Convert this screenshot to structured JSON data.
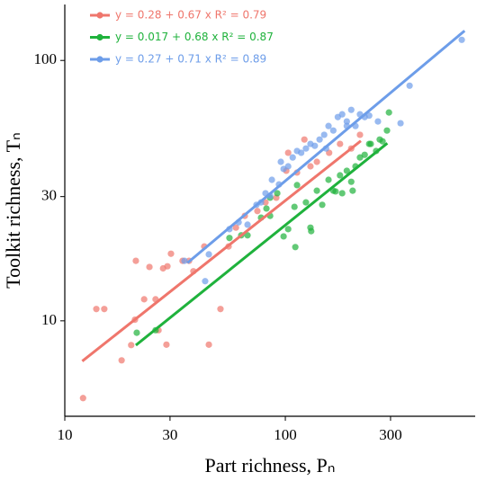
{
  "chart_data": {
    "type": "scatter",
    "x_label": "Part richness, Pₙ",
    "y_label": "Toolkit richness, Tₙ",
    "log_x": true,
    "log_y": true,
    "xlim": [
      10,
      726
    ],
    "ylim": [
      4.3,
      164
    ],
    "xticks": [
      10,
      30,
      100,
      300
    ],
    "yticks": [
      10,
      30,
      100
    ],
    "legend": "top-left",
    "series": [
      {
        "name": "y = 0.28 + 0.67 x  R² = 0.79",
        "color": "#ef766c",
        "x": [
          12.1,
          13.9,
          15.1,
          18.1,
          20,
          21,
          20.8,
          22.9,
          24.2,
          26.6,
          25.8,
          27.9,
          29.2,
          30.3,
          28.9,
          34.2,
          36.6,
          38.3,
          45,
          50.8,
          42.9,
          55.3,
          59.7,
          65.5,
          74.7,
          81.3,
          91,
          101,
          103,
          113,
          122,
          130,
          139,
          158,
          177,
          199,
          218
        ],
        "values": [
          5.05,
          11.1,
          11.1,
          7.05,
          8.07,
          17,
          10.1,
          12.1,
          16.1,
          9.2,
          12.1,
          15.9,
          16.2,
          18.1,
          8.1,
          17,
          17,
          15.5,
          8.1,
          11.1,
          19.3,
          19.3,
          22.8,
          25.3,
          26.4,
          28.5,
          29.7,
          37.7,
          44.2,
          37.1,
          49.7,
          39.2,
          40.8,
          44.2,
          47.8,
          45.9,
          51.8
        ],
        "fit_x": [
          12,
          220
        ],
        "fit_y": [
          7.0,
          49.1
        ]
      },
      {
        "name": "y = 0.017 + 0.68 x  R² = 0.87",
        "color": "#1fb23c",
        "x": [
          21.2,
          25.8,
          55.8,
          63.1,
          67.4,
          77.6,
          82.1,
          85.3,
          85.3,
          98.2,
          103,
          110,
          111,
          124,
          130,
          131,
          139,
          147,
          157,
          165,
          169,
          177,
          181,
          190,
          199,
          202,
          208,
          218,
          229,
          240,
          244,
          258,
          268,
          276,
          289,
          295,
          113,
          91.9
        ],
        "values": [
          9,
          9.2,
          20.8,
          21.3,
          21.3,
          24.9,
          27,
          25.3,
          29.7,
          21.1,
          22.5,
          27.4,
          19.2,
          28.5,
          22.8,
          22.1,
          31.6,
          27.9,
          34.8,
          31.6,
          31.4,
          36.2,
          30.9,
          37.7,
          34.2,
          31.6,
          39.2,
          42.4,
          43.4,
          47.8,
          47.8,
          44.9,
          49.7,
          48.9,
          53.8,
          63.1,
          33.2,
          30.9
        ],
        "fit_x": [
          21,
          290
        ],
        "fit_y": [
          8.06,
          48.1
        ]
      },
      {
        "name": "y = 0.27 + 0.71 x  R² = 0.89",
        "color": "#6d9de9",
        "x": [
          34.9,
          45,
          55.8,
          61.4,
          67.4,
          74,
          77.6,
          81.3,
          85.3,
          86.9,
          93.6,
          95.4,
          98.2,
          103,
          108,
          113,
          118,
          124,
          130,
          136,
          143,
          150,
          153,
          157,
          165,
          173,
          181,
          190,
          199,
          208,
          218,
          229,
          240,
          263,
          333,
          366,
          631,
          190,
          43.3
        ],
        "values": [
          17,
          18,
          22.5,
          23.9,
          23.4,
          27.9,
          28.5,
          30.9,
          30.2,
          34.8,
          33.4,
          40.8,
          38.3,
          39.2,
          42.4,
          44.9,
          44.2,
          45.9,
          47.8,
          47,
          49.7,
          51.8,
          45.9,
          56,
          53.8,
          60.6,
          62.1,
          58.3,
          64.6,
          56,
          62.1,
          60.6,
          61.4,
          58.3,
          57.4,
          80,
          120,
          56,
          14.2
        ],
        "fit_x": [
          36,
          650
        ],
        "fit_y": [
          16.7,
          130
        ]
      }
    ]
  }
}
